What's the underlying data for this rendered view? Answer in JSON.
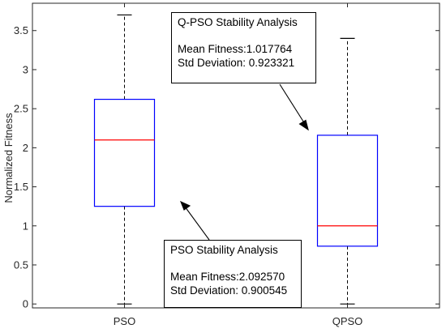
{
  "chart_data": {
    "type": "boxplot",
    "ylabel": "Normalized Fitness",
    "xlabel": "",
    "ylim": [
      -0.05,
      3.85
    ],
    "yticks": [
      "0",
      "0.5",
      "1",
      "1.5",
      "2",
      "2.5",
      "3",
      "3.5"
    ],
    "categories": [
      "PSO",
      "QPSO"
    ],
    "boxes": [
      {
        "category": "PSO",
        "min": 0,
        "q1": 1.25,
        "median": 2.1,
        "q3": 2.62,
        "max": 3.7
      },
      {
        "category": "QPSO",
        "min": 0,
        "q1": 0.74,
        "median": 1.0,
        "q3": 2.16,
        "max": 3.4
      }
    ],
    "grid": false,
    "colors": {
      "box": "#0000ff",
      "median": "#ff0000",
      "whisker": "#000000"
    }
  },
  "annotations": [
    {
      "title": "Q-PSO Stability Analysis",
      "mean_line": "Mean Fitness:1.017764",
      "std_line": "Std Deviation: 0.923321"
    },
    {
      "title": "PSO Stability Analysis",
      "mean_line": "Mean Fitness:2.092570",
      "std_line": "Std Deviation: 0.900545"
    }
  ]
}
